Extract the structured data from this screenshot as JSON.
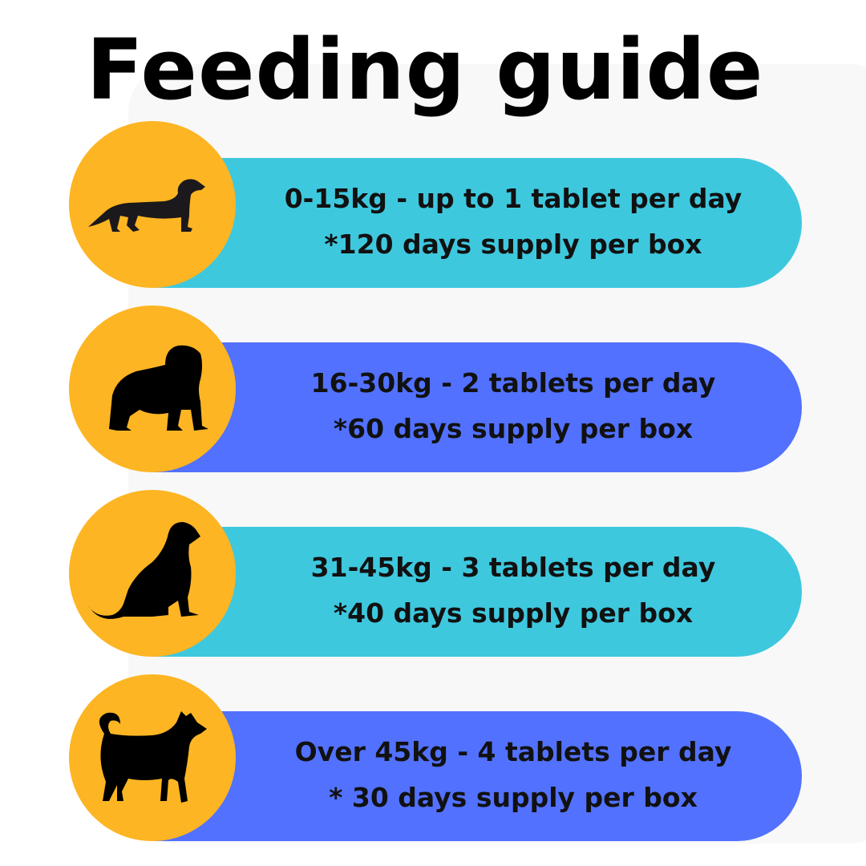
{
  "title": "Feeding guide",
  "colors": {
    "circle": "#FDB523",
    "cyan": "#3EC8DE",
    "blue": "#5271FF",
    "silhouette": "#1b191b"
  },
  "rows": [
    {
      "icon": "dachshund-icon",
      "line1": "0-15kg - up to 1 tablet per day",
      "line2": "*120 days supply per box",
      "color": "#3EC8DE"
    },
    {
      "icon": "bulldog-icon",
      "line1": "16-30kg - 2 tablets per day",
      "line2": "*60 days supply per box",
      "color": "#5271FF"
    },
    {
      "icon": "retriever-sitting-icon",
      "line1": "31-45kg - 3 tablets per day",
      "line2": "*40 days supply per box",
      "color": "#3EC8DE"
    },
    {
      "icon": "husky-icon",
      "line1": "Over 45kg - 4 tablets per day",
      "line2": "* 30 days supply per box",
      "color": "#5271FF"
    }
  ]
}
